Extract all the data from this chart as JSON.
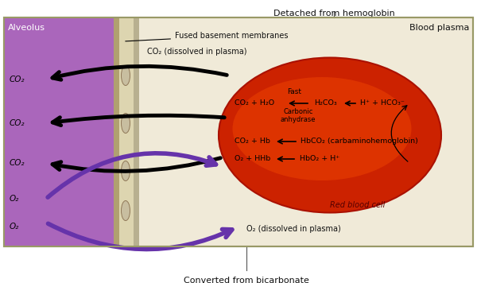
{
  "fig_width": 6.0,
  "fig_height": 3.56,
  "dpi": 100,
  "bg_color": "#f0ead8",
  "border_color": "#999966",
  "alveolus_color": "#aa66bb",
  "alveolus_label": "Alveolus",
  "blood_plasma_label": "Blood plasma",
  "rbc_color_outer": "#cc2200",
  "rbc_color_inner": "#dd3300",
  "rbc_label": "Red blood cell",
  "top_label": "Detached from hemoglobin",
  "bottom_label": "Converted from bicarbonate",
  "fused_label": "Fused basement membranes",
  "co2_plasma_label": "CO₂ (dissolved in plasma)",
  "o2_plasma_label": "O₂ (dissolved in plasma)",
  "co2_labels": [
    "CO₂",
    "CO₂",
    "CO₂"
  ],
  "o2_labels": [
    "O₂",
    "O₂"
  ],
  "reaction1_left": "CO₂ + H₂O",
  "reaction1_mid": "H₂CO₃",
  "reaction1_right": "H⁺ + HCO₃⁻",
  "reaction1_fast": "Fast",
  "reaction1_enzyme": "Carbonic\nanhydrase",
  "reaction2_left": "CO₂ + Hb",
  "reaction2_right": "HbCO₂ (carbaminohemoglobin)",
  "reaction3_left": "O₂ + HHb",
  "reaction3_right": "HbO₂ + H⁺",
  "arrow_black_color": "#111111",
  "arrow_purple_color": "#6633aa",
  "text_color": "#111111",
  "label_fontsize": 8.0,
  "small_fontsize": 7.0,
  "reaction_fontsize": 6.8
}
